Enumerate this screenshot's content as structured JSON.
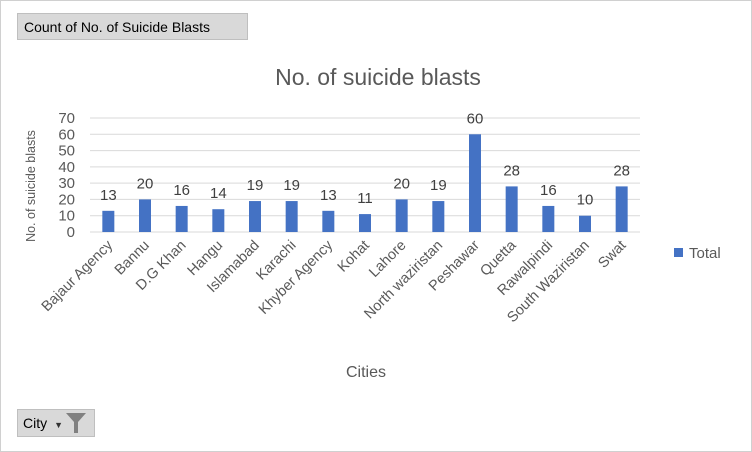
{
  "pivot": {
    "values_field": "Count of No. of Suicide Blasts",
    "axis_field": "City",
    "filter_icon": "filter-icon"
  },
  "chart_data": {
    "type": "bar",
    "title": "No. of suicide blasts",
    "xlabel": "Cities",
    "ylabel": "No. of suicide blasts",
    "ylim": [
      0,
      70
    ],
    "yticks": [
      0,
      10,
      20,
      30,
      40,
      50,
      60,
      70
    ],
    "grid": true,
    "legend_position": "right",
    "bar_color": "#4472c4",
    "categories": [
      "Bajaur Agency",
      "Bannu",
      "D.G Khan",
      "Hangu",
      "Islamabad",
      "Karachi",
      "Khyber Agency",
      "Kohat",
      "Lahore",
      "North waziristan",
      "Peshawar",
      "Quetta",
      "Rawalpindi",
      "South Waziristan",
      "Swat"
    ],
    "series": [
      {
        "name": "Total",
        "values": [
          13,
          20,
          16,
          14,
          19,
          19,
          13,
          11,
          20,
          19,
          60,
          28,
          16,
          10,
          28
        ]
      }
    ]
  }
}
